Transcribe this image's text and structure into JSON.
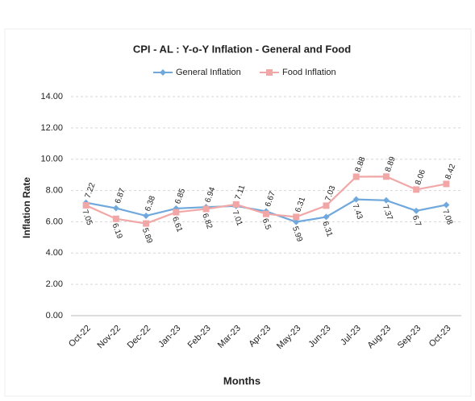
{
  "chart_data": {
    "type": "line",
    "title": "CPI - AL : Y-o-Y Inflation - General and Food",
    "y_label": "Inflation Rate",
    "x_label": "Months",
    "categories": [
      "Oct-22",
      "Nov-22",
      "Dec-22",
      "Jan-23",
      "Feb-23",
      "Mar-23",
      "Apr-23",
      "May-23",
      "Jun-23",
      "Jul-23",
      "Aug-23",
      "Sep-23",
      "Oct-23"
    ],
    "series": [
      {
        "name": "General Inflation",
        "color": "#6fa8dc",
        "marker": "diamond",
        "values": [
          7.22,
          6.87,
          6.38,
          6.85,
          6.94,
          7.01,
          6.67,
          5.99,
          6.31,
          7.43,
          7.37,
          6.7,
          7.08
        ]
      },
      {
        "name": "Food Inflation",
        "color": "#f2a7a7",
        "marker": "square",
        "values": [
          7.05,
          6.19,
          5.89,
          6.61,
          6.82,
          7.11,
          6.5,
          6.31,
          7.03,
          8.88,
          8.89,
          8.06,
          8.42
        ]
      }
    ],
    "ylim": [
      0,
      14
    ],
    "yticks": [
      {
        "value": 0,
        "label": "0.00"
      },
      {
        "value": 2,
        "label": "2.00"
      },
      {
        "value": 4,
        "label": "4.00"
      },
      {
        "value": 6,
        "label": "6.00"
      },
      {
        "value": 8,
        "label": "8.00"
      },
      {
        "value": 10,
        "label": "10.00"
      },
      {
        "value": 12,
        "label": "12.00"
      },
      {
        "value": 14,
        "label": "14.00"
      }
    ],
    "grid": true,
    "legend": "top"
  }
}
